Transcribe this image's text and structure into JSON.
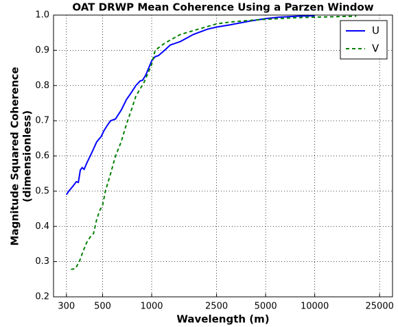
{
  "chart_data": {
    "type": "line",
    "title": "OAT DRWP Mean Coherence Using a Parzen Window",
    "xlabel": "Wavelength (m)",
    "ylabel": [
      "Magnitude Squared Coherence",
      "(dimensionless)"
    ],
    "xscale": "log",
    "xlim": [
      250,
      30000
    ],
    "xticks": [
      300,
      500,
      1000,
      2500,
      5000,
      10000,
      25000
    ],
    "ylim": [
      0.2,
      1
    ],
    "yticks": [
      0.2,
      0.3,
      0.4,
      0.5,
      0.6,
      0.7,
      0.8,
      0.9,
      {
        "value": 1,
        "label": "1.0"
      }
    ],
    "grid": true,
    "legend": "upper right",
    "series": [
      {
        "name": "U",
        "color": "#0000ff",
        "linestyle": "solid",
        "x": [
          300,
          310,
          330,
          345,
          355,
          365,
          375,
          385,
          400,
          430,
          460,
          490,
          510,
          540,
          560,
          600,
          650,
          700,
          750,
          800,
          850,
          880,
          920,
          1000,
          1050,
          1100,
          1200,
          1300,
          1500,
          1800,
          2200,
          2500,
          3000,
          4000,
          5000,
          6000,
          8000,
          10000
        ],
        "values": [
          0.49,
          0.5,
          0.515,
          0.527,
          0.525,
          0.56,
          0.567,
          0.562,
          0.58,
          0.61,
          0.64,
          0.655,
          0.672,
          0.69,
          0.7,
          0.705,
          0.73,
          0.76,
          0.78,
          0.8,
          0.813,
          0.815,
          0.83,
          0.87,
          0.882,
          0.885,
          0.9,
          0.915,
          0.925,
          0.945,
          0.96,
          0.966,
          0.972,
          0.983,
          0.99,
          0.994,
          0.997,
          0.998
        ]
      },
      {
        "name": "V",
        "color": "#008000",
        "linestyle": "dashed",
        "x": [
          320,
          340,
          360,
          380,
          400,
          420,
          440,
          460,
          480,
          500,
          520,
          560,
          600,
          650,
          700,
          750,
          800,
          900,
          1000,
          1050,
          1200,
          1500,
          2000,
          2500,
          3000,
          4000,
          5000,
          8000,
          12000,
          18000
        ],
        "values": [
          0.278,
          0.28,
          0.3,
          0.33,
          0.355,
          0.37,
          0.38,
          0.42,
          0.445,
          0.46,
          0.5,
          0.55,
          0.6,
          0.64,
          0.69,
          0.73,
          0.77,
          0.81,
          0.86,
          0.9,
          0.92,
          0.945,
          0.962,
          0.975,
          0.98,
          0.985,
          0.988,
          0.993,
          0.995,
          0.997
        ]
      }
    ]
  }
}
